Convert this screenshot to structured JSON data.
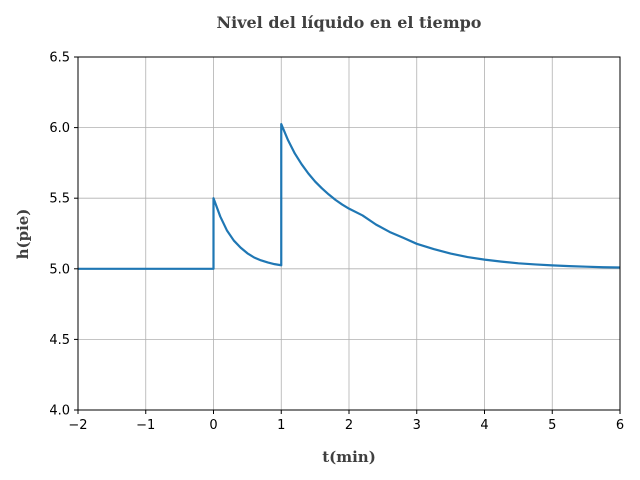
{
  "chart_data": {
    "type": "line",
    "title": "Nivel del líquido en el tiempo",
    "xlabel": "t(min)",
    "ylabel": "h(pie)",
    "xlim": [
      -2,
      6
    ],
    "ylim": [
      4.0,
      6.5
    ],
    "xticks": [
      -2,
      -1,
      0,
      1,
      2,
      3,
      4,
      5,
      6
    ],
    "xtick_labels": [
      "−2",
      "−1",
      "0",
      "1",
      "2",
      "3",
      "4",
      "5",
      "6"
    ],
    "yticks": [
      4.0,
      4.5,
      5.0,
      5.5,
      6.0,
      6.5
    ],
    "ytick_labels": [
      "4.0",
      "4.5",
      "5.0",
      "5.5",
      "6.0",
      "6.5"
    ],
    "grid": true,
    "line_color": "#1f77b4",
    "series": [
      {
        "x": [
          -2,
          0,
          0,
          0.1,
          0.2,
          0.3,
          0.4,
          0.5,
          0.6,
          0.7,
          0.8,
          0.9,
          1.0,
          1.0,
          1.1,
          1.2,
          1.3,
          1.4,
          1.5,
          1.6,
          1.7,
          1.8,
          1.9,
          2.0,
          2.2,
          2.4,
          2.6,
          2.8,
          3.0,
          3.25,
          3.5,
          3.75,
          4.0,
          4.25,
          4.5,
          4.75,
          5.0,
          5.25,
          5.5,
          5.75,
          6.0
        ],
        "y": [
          5.0,
          5.0,
          5.5,
          5.37,
          5.27,
          5.2,
          5.15,
          5.11,
          5.08,
          5.06,
          5.045,
          5.033,
          5.025,
          6.025,
          5.911,
          5.817,
          5.741,
          5.675,
          5.618,
          5.57,
          5.527,
          5.488,
          5.455,
          5.426,
          5.378,
          5.313,
          5.261,
          5.22,
          5.177,
          5.14,
          5.108,
          5.083,
          5.065,
          5.051,
          5.039,
          5.031,
          5.024,
          5.019,
          5.015,
          5.011,
          5.009
        ]
      }
    ]
  }
}
